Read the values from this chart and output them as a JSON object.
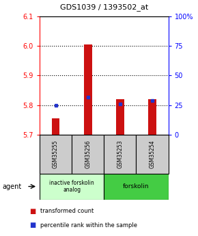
{
  "title": "GDS1039 / 1393502_at",
  "samples": [
    "GSM35255",
    "GSM35256",
    "GSM35253",
    "GSM35254"
  ],
  "bar_bottoms": [
    5.7,
    5.7,
    5.7,
    5.7
  ],
  "bar_tops": [
    5.755,
    6.005,
    5.82,
    5.82
  ],
  "percentile_values": [
    5.8,
    5.826,
    5.804,
    5.814
  ],
  "ylim_left": [
    5.7,
    6.1
  ],
  "ylim_right": [
    0,
    100
  ],
  "yticks_left": [
    5.7,
    5.8,
    5.9,
    6.0,
    6.1
  ],
  "yticks_right": [
    0,
    25,
    50,
    75,
    100
  ],
  "ytick_labels_right": [
    "0",
    "25",
    "50",
    "75",
    "100%"
  ],
  "gridlines": [
    5.8,
    5.9,
    6.0
  ],
  "bar_color": "#cc1111",
  "percentile_color": "#2233cc",
  "group1_label": "inactive forskolin\nanalog",
  "group1_color": "#ccffcc",
  "group2_label": "forskolin",
  "group2_color": "#44cc44",
  "sample_box_color": "#cccccc",
  "bar_width": 0.25,
  "legend_red": "transformed count",
  "legend_blue": "percentile rank within the sample"
}
